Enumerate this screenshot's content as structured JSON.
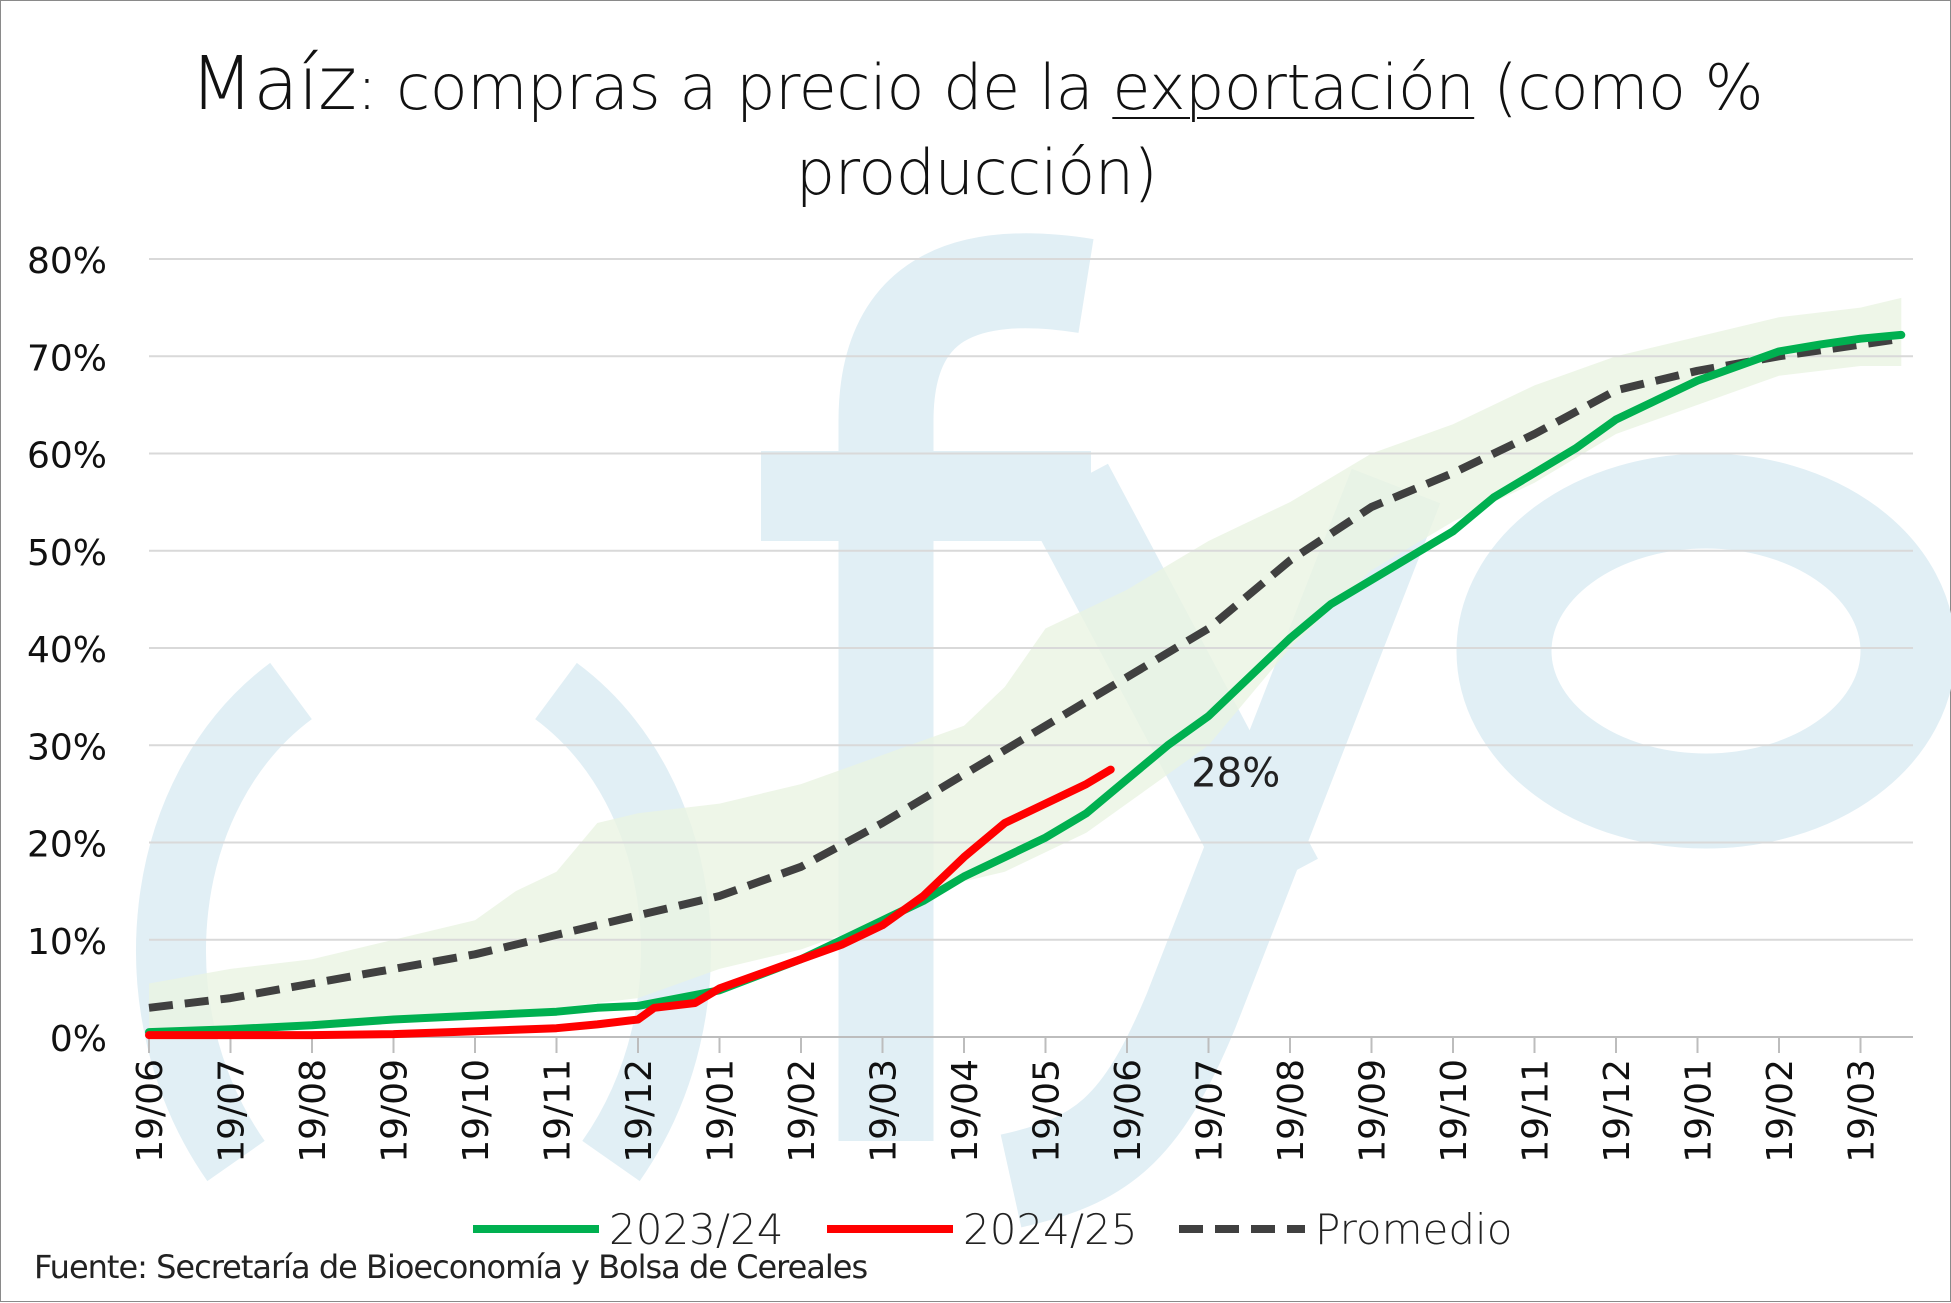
{
  "title": {
    "word1": "Maíz",
    "part2": ": compras a precio de la ",
    "underlined": "exportación",
    "part3": " (como %",
    "line2": "producción)"
  },
  "source": "Fuente: Secretaría de Bioeconomía y Bolsa de Cereales",
  "watermark": {
    "text": "fyo",
    "color": "#e1eff5"
  },
  "chart_data": {
    "type": "line",
    "x_unit": "months since 19/06 (weekly series over ~21.5 months)",
    "xticks": [
      "19/06",
      "19/07",
      "19/08",
      "19/09",
      "19/10",
      "19/11",
      "19/12",
      "19/01",
      "19/02",
      "19/03",
      "19/04",
      "19/05",
      "19/06",
      "19/07",
      "19/08",
      "19/09",
      "19/10",
      "19/11",
      "19/12",
      "19/01",
      "19/02",
      "19/03"
    ],
    "xlim": [
      0,
      21.5
    ],
    "ylim": [
      0,
      80
    ],
    "yticks": [
      "0%",
      "10%",
      "20%",
      "30%",
      "40%",
      "50%",
      "60%",
      "70%",
      "80%"
    ],
    "grid": "horizontal",
    "legend_position": "bottom",
    "annotation": {
      "text": "28%",
      "x": 12.2,
      "y": 27
    },
    "band": {
      "color": "#eaf4e2",
      "x": [
        0,
        1,
        2,
        3,
        4,
        4.5,
        5,
        5.5,
        6,
        7,
        8,
        9,
        10,
        10.5,
        11,
        11.5,
        12,
        13,
        14,
        15,
        16,
        17,
        18,
        19,
        20,
        21,
        21.5
      ],
      "upper": [
        5.5,
        7,
        8,
        10,
        12,
        15,
        17,
        22,
        23,
        24,
        26,
        29,
        32,
        36,
        42,
        44,
        46,
        51,
        55,
        60,
        63,
        67,
        70,
        72,
        74,
        75,
        76
      ],
      "lower": [
        0,
        0.5,
        1,
        1.5,
        2,
        2.5,
        3,
        3.5,
        4,
        7,
        9,
        12,
        16,
        17,
        19,
        21,
        24,
        30,
        40,
        48,
        53,
        57,
        62,
        65,
        68,
        69,
        69
      ]
    },
    "series": [
      {
        "name": "2023/24",
        "color": "#00b050",
        "dash": "",
        "x": [
          0,
          1,
          2,
          3,
          4,
          5,
          5.5,
          6,
          7,
          8,
          8.5,
          9,
          9.5,
          10,
          10.5,
          11,
          11.5,
          12,
          12.5,
          13,
          13.5,
          14,
          14.5,
          15,
          15.5,
          16,
          16.5,
          17,
          17.5,
          18,
          18.5,
          19,
          19.5,
          20,
          20.5,
          21,
          21.5
        ],
        "y": [
          0.5,
          0.8,
          1.2,
          1.8,
          2.2,
          2.6,
          3.0,
          3.2,
          4.8,
          8.0,
          10.0,
          12.0,
          14.0,
          16.5,
          18.5,
          20.5,
          23.0,
          26.5,
          30.0,
          33.0,
          37.0,
          41.0,
          44.5,
          47.0,
          49.5,
          52.0,
          55.5,
          58.0,
          60.5,
          63.5,
          65.5,
          67.5,
          69.0,
          70.5,
          71.2,
          71.8,
          72.2
        ]
      },
      {
        "name": "2024/25",
        "color": "#ff0000",
        "dash": "",
        "x": [
          0,
          1,
          2,
          3,
          4,
          5,
          5.5,
          6,
          6.2,
          6.7,
          7,
          7.5,
          8,
          8.5,
          9,
          9.5,
          10,
          10.5,
          11,
          11.5,
          11.8
        ],
        "y": [
          0.2,
          0.2,
          0.2,
          0.3,
          0.6,
          0.9,
          1.3,
          1.8,
          3.0,
          3.5,
          5.0,
          6.5,
          8.0,
          9.5,
          11.5,
          14.5,
          18.5,
          22.0,
          24.0,
          26.0,
          27.5
        ]
      },
      {
        "name": "Promedio",
        "color": "#404040",
        "dash": "24,12",
        "x": [
          0,
          1,
          2,
          3,
          4,
          5,
          6,
          7,
          8,
          9,
          10,
          11,
          12,
          13,
          14,
          15,
          16,
          17,
          18,
          19,
          20,
          21,
          21.5
        ],
        "y": [
          3,
          4,
          5.5,
          7,
          8.5,
          10.5,
          12.5,
          14.5,
          17.5,
          22,
          27,
          32,
          37,
          42,
          49,
          54.5,
          58,
          62,
          66.5,
          68.5,
          70,
          71.2,
          71.8
        ]
      }
    ]
  }
}
